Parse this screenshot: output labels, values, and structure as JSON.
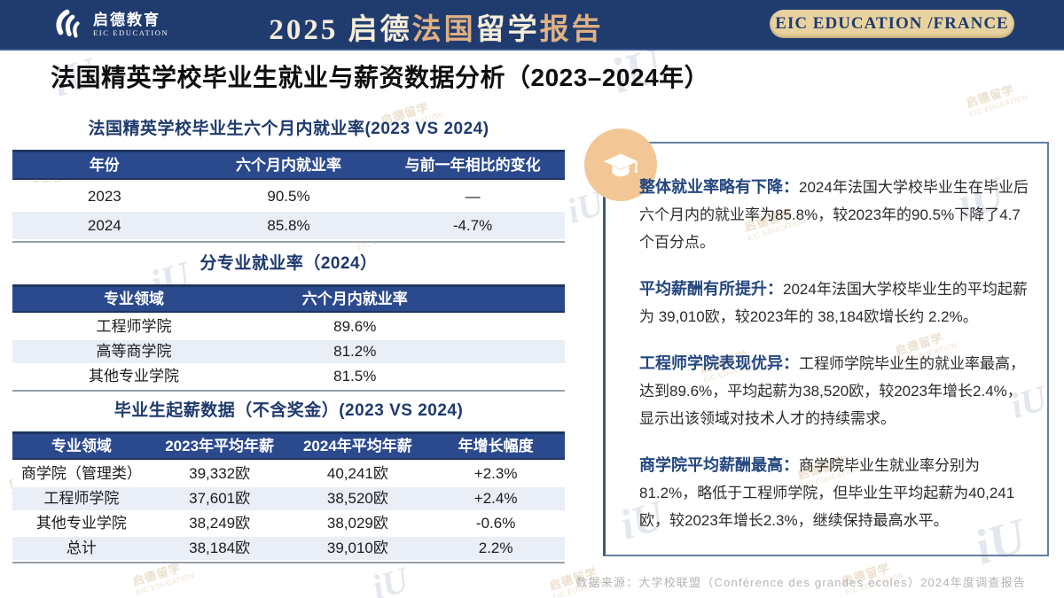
{
  "header": {
    "logo": {
      "cn": "启德教育",
      "en": "EIC EDUCATION"
    },
    "title_segments": [
      {
        "text": "2025 启德",
        "color": "#f5edda"
      },
      {
        "text": "法国",
        "color": "#e0b083"
      },
      {
        "text": "留学",
        "color": "#f5edda"
      },
      {
        "text": "报告",
        "color": "#e0b083"
      }
    ],
    "badge": "EIC EDUCATION /FRANCE"
  },
  "page_title": "法国精英学校毕业生就业与薪资数据分析（2023–2024年）",
  "tables": [
    {
      "title": "法国精英学校毕业生六个月内就业率(2023 VS 2024)",
      "headers": [
        "年份",
        "六个月内就业率",
        "与前一年相比的变化"
      ],
      "rows": [
        [
          "2023",
          "90.5%",
          "—"
        ],
        [
          "2024",
          "85.8%",
          "-4.7%"
        ]
      ]
    },
    {
      "title": "分专业就业率（2024）",
      "headers": [
        "专业领域",
        "六个月内就业率"
      ],
      "rows": [
        [
          "工程师学院",
          "89.6%"
        ],
        [
          "高等商学院",
          "81.2%"
        ],
        [
          "其他专业学院",
          "81.5%"
        ]
      ]
    },
    {
      "title": "毕业生起薪数据（不含奖金）(2023 VS 2024)",
      "headers": [
        "专业领域",
        "2023年平均年薪",
        "2024年平均年薪",
        "年增长幅度"
      ],
      "rows": [
        [
          "商学院（管理类）",
          "39,332欧",
          "40,241欧",
          "+2.3%"
        ],
        [
          "工程师学院",
          "37,601欧",
          "38,520欧",
          "+2.4%"
        ],
        [
          "其他专业学院",
          "38,249欧",
          "38,029欧",
          "-0.6%"
        ],
        [
          "总计",
          "38,184欧",
          "39,010欧",
          "2.2%"
        ]
      ]
    }
  ],
  "insights": [
    {
      "lead": "整体就业率略有下降：",
      "body": "2024年法国大学校毕业生在毕业后六个月内的就业率为85.8%，较2023年的90.5%下降了4.7个百分点。"
    },
    {
      "lead": "平均薪酬有所提升：",
      "body": "2024年法国大学校毕业生的平均起薪为 39,010欧，较2023年的 38,184欧增长约 2.2%。"
    },
    {
      "lead": "工程师学院表现优异：",
      "body": "工程师学院毕业生的就业率最高，达到89.6%，平均起薪为38,520欧，较2023年增长2.4%，显示出该领域对技术人才的持续需求。"
    },
    {
      "lead": "商学院平均薪酬最高：",
      "body": "商学院毕业生就业率分别为81.2%，略低于工程师学院，但毕业生平均起薪为40,241欧，较2023年增长2.3%，继续保持最高水平。"
    }
  ],
  "footer": {
    "source": "数据来源：大学校联盟（Conférence des grandes écoles）2024年度调查报告"
  },
  "watermark": {
    "cn": "启德留学",
    "en": "EIC EDUCATION",
    "glyph": "iU"
  },
  "colors": {
    "header_navy": "#203c6e",
    "table_header_blue": "#2b4a8e",
    "alt_row_blue": "#e9eef7",
    "gold_text": "#e0b083",
    "badge_pill": "#e8d2a0",
    "panel_border": "#64819f",
    "insight_lead_navy": "#24477f",
    "badge_circle_tan": "#f2c795",
    "footer_gray": "#b4b4b4"
  }
}
